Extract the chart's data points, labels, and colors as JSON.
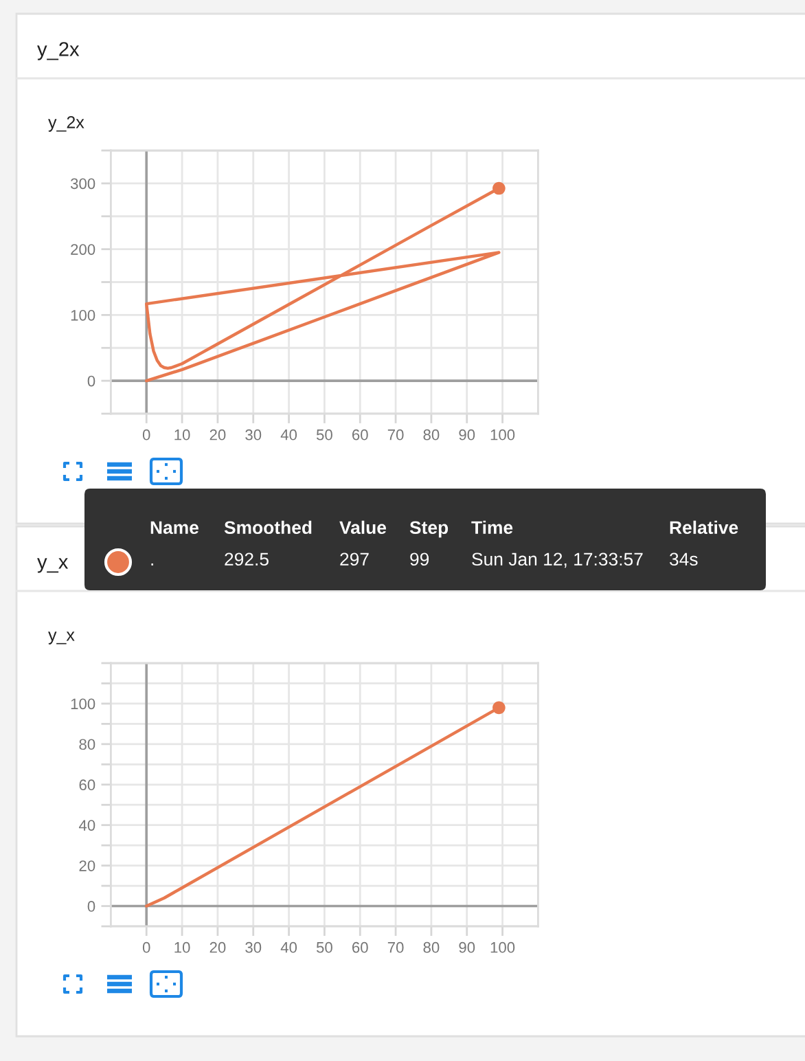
{
  "chart_data": [
    {
      "type": "line",
      "title": "y_2x",
      "subtitle": "y_2x",
      "series": [
        {
          "type": "line",
          "color": "#e8794f",
          "x": [
            0,
            10,
            30,
            50,
            70,
            99,
            0,
            1,
            2,
            3,
            4,
            5,
            6,
            7,
            8,
            10,
            15,
            20,
            40,
            60,
            80,
            99
          ],
          "values": [
            0,
            17,
            57,
            97,
            137,
            195,
            117,
            71,
            45,
            31,
            23,
            20,
            19,
            20,
            22,
            26,
            41,
            56,
            116,
            176,
            236,
            292.5
          ]
        },
        {
          "type": "scatter",
          "color": "#e8794f",
          "marker": "circle",
          "x": [
            99
          ],
          "values": [
            292.5
          ]
        }
      ],
      "xlim": [
        -10,
        110
      ],
      "xticks": [
        0,
        10,
        20,
        30,
        40,
        50,
        60,
        70,
        80,
        90,
        100
      ],
      "ylim": [
        -50,
        350
      ],
      "yticks": [
        {
          "value": -50,
          "label": null
        },
        0,
        {
          "value": 50,
          "label": null
        },
        100,
        {
          "value": 150,
          "label": null
        },
        200,
        {
          "value": 250,
          "label": null
        },
        300,
        {
          "value": 350,
          "label": null
        }
      ],
      "grid": true
    },
    {
      "type": "other",
      "color": "#e8794f",
      "annotations": [
        "Name",
        "Smoothed",
        "Value",
        "Step",
        "Time",
        "Relative",
        ".",
        "292.5",
        "297",
        "99",
        "Sun Jan 12, 17:33:57",
        "34s"
      ]
    },
    {
      "type": "line",
      "title": "y_x",
      "subtitle": "y_x",
      "series": [
        {
          "type": "line",
          "color": "#e8794f",
          "x": [
            0,
            5,
            10,
            50,
            99
          ],
          "values": [
            0,
            4,
            9,
            49,
            98
          ]
        },
        {
          "type": "scatter",
          "color": "#e8794f",
          "marker": "circle",
          "x": [
            99
          ],
          "values": [
            98
          ]
        }
      ],
      "xlim": [
        -10,
        110
      ],
      "xticks": [
        0,
        10,
        20,
        30,
        40,
        50,
        60,
        70,
        80,
        90,
        100
      ],
      "ylim": [
        -10,
        120
      ],
      "yticks": [
        {
          "value": -10,
          "label": null
        },
        0,
        {
          "value": 10,
          "label": null
        },
        20,
        {
          "value": 30,
          "label": null
        },
        40,
        {
          "value": 50,
          "label": null
        },
        60,
        {
          "value": 70,
          "label": null
        },
        80,
        {
          "value": 90,
          "label": null
        },
        100,
        {
          "value": 110,
          "label": null
        },
        {
          "value": 120,
          "label": null
        }
      ],
      "grid": true
    }
  ]
}
